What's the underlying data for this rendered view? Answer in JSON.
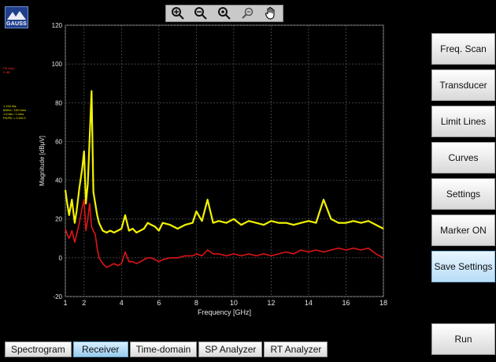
{
  "app": {
    "logo_text": "GAUSS"
  },
  "toolbar": {
    "tools": [
      {
        "name": "zoom-in-icon",
        "icon": "zoom-in"
      },
      {
        "name": "zoom-out-icon",
        "icon": "zoom-out"
      },
      {
        "name": "zoom-fit-icon",
        "icon": "zoom-fit"
      },
      {
        "name": "zoom-reset-icon",
        "icon": "zoom-reset"
      },
      {
        "name": "pan-hand-icon",
        "icon": "hand"
      }
    ]
  },
  "side_panel": {
    "buttons": [
      {
        "label": "Freq. Scan",
        "active": false
      },
      {
        "label": "Transducer",
        "active": false
      },
      {
        "label": "Limit Lines",
        "active": false
      },
      {
        "label": "Curves",
        "active": false
      },
      {
        "label": "Settings",
        "active": false
      },
      {
        "label": "Marker ON",
        "active": false
      },
      {
        "label": "Save Settings",
        "active": true
      }
    ],
    "run_label": "Run"
  },
  "bottom_tabs": [
    {
      "label": "Spectrogram",
      "active": false
    },
    {
      "label": "Receiver",
      "active": true
    },
    {
      "label": "Time-domain",
      "active": false
    },
    {
      "label": "SP Analyzer",
      "active": false
    },
    {
      "label": "RT Analyzer",
      "active": false
    }
  ],
  "legend": {
    "red_lines": [
      "PK Auto",
      "0 dB"
    ],
    "yellow_lines": [
      "1.194 Ms",
      "6MHz / 100.0ms",
      "1.6 Ms / 1.0ms",
      "PK/PK = 0.0/0.0"
    ]
  },
  "chart_data": {
    "type": "line",
    "xlabel": "Frequency [GHz]",
    "ylabel": "Magnitude [dBμV]",
    "xlim": [
      1,
      18
    ],
    "ylim": [
      -20,
      120
    ],
    "x_ticks": [
      1,
      2,
      4,
      6,
      8,
      10,
      12,
      14,
      16,
      18
    ],
    "y_ticks": [
      -20,
      0,
      20,
      40,
      60,
      80,
      100,
      120
    ],
    "grid": true,
    "series": [
      {
        "color": "#f2f200",
        "x": [
          1,
          1.1,
          1.2,
          1.35,
          1.5,
          1.6,
          1.75,
          1.9,
          2.0,
          2.1,
          2.2,
          2.3,
          2.4,
          2.5,
          2.6,
          2.7,
          2.8,
          3.0,
          3.2,
          3.4,
          3.6,
          3.8,
          4.0,
          4.2,
          4.4,
          4.6,
          4.8,
          5.0,
          5.2,
          5.4,
          5.6,
          5.8,
          6.0,
          6.2,
          6.6,
          7.0,
          7.4,
          7.8,
          8.0,
          8.3,
          8.6,
          8.9,
          9.2,
          9.6,
          10.0,
          10.4,
          10.8,
          11.2,
          11.6,
          12.0,
          12.4,
          12.8,
          13.2,
          13.6,
          14.0,
          14.4,
          14.8,
          15.2,
          15.6,
          16.0,
          16.4,
          16.8,
          17.2,
          17.6,
          18.0
        ],
        "y": [
          35,
          28,
          22,
          30,
          18,
          24,
          36,
          46,
          55,
          28,
          38,
          62,
          86,
          34,
          28,
          22,
          18,
          14,
          13,
          14,
          13,
          14,
          15,
          22,
          14,
          15,
          13,
          14,
          15,
          18,
          17,
          16,
          14,
          18,
          17,
          15,
          17,
          18,
          24,
          19,
          30,
          18,
          19,
          18,
          20,
          17,
          19,
          18,
          17,
          19,
          18,
          18,
          17,
          18,
          19,
          18,
          30,
          20,
          18,
          18,
          19,
          18,
          19,
          17,
          15
        ]
      },
      {
        "color": "#e01414",
        "x": [
          1,
          1.1,
          1.2,
          1.35,
          1.5,
          1.6,
          1.75,
          1.9,
          2.0,
          2.1,
          2.2,
          2.3,
          2.4,
          2.5,
          2.6,
          2.7,
          2.8,
          3.0,
          3.2,
          3.4,
          3.6,
          3.8,
          4.0,
          4.2,
          4.4,
          4.6,
          4.8,
          5.0,
          5.2,
          5.4,
          5.6,
          5.8,
          6.0,
          6.2,
          6.6,
          7.0,
          7.4,
          7.8,
          8.0,
          8.3,
          8.6,
          8.9,
          9.2,
          9.6,
          10.0,
          10.4,
          10.8,
          11.2,
          11.6,
          12.0,
          12.4,
          12.8,
          13.2,
          13.6,
          14.0,
          14.4,
          14.8,
          15.2,
          15.6,
          16.0,
          16.4,
          16.8,
          17.2,
          17.6,
          18.0
        ],
        "y": [
          15,
          12,
          10,
          14,
          8,
          12,
          18,
          26,
          30,
          14,
          20,
          28,
          16,
          14,
          12,
          5,
          0,
          -3,
          -5,
          -4,
          -3,
          -4,
          -3,
          3,
          -2,
          -2,
          -3,
          -2,
          -1,
          0,
          0,
          -1,
          -2,
          -1,
          0,
          0,
          1,
          1,
          2,
          1,
          4,
          2,
          2,
          1,
          2,
          1,
          2,
          1,
          2,
          1,
          2,
          3,
          2,
          4,
          3,
          4,
          3,
          4,
          5,
          4,
          5,
          4,
          5,
          2,
          0
        ]
      }
    ]
  }
}
